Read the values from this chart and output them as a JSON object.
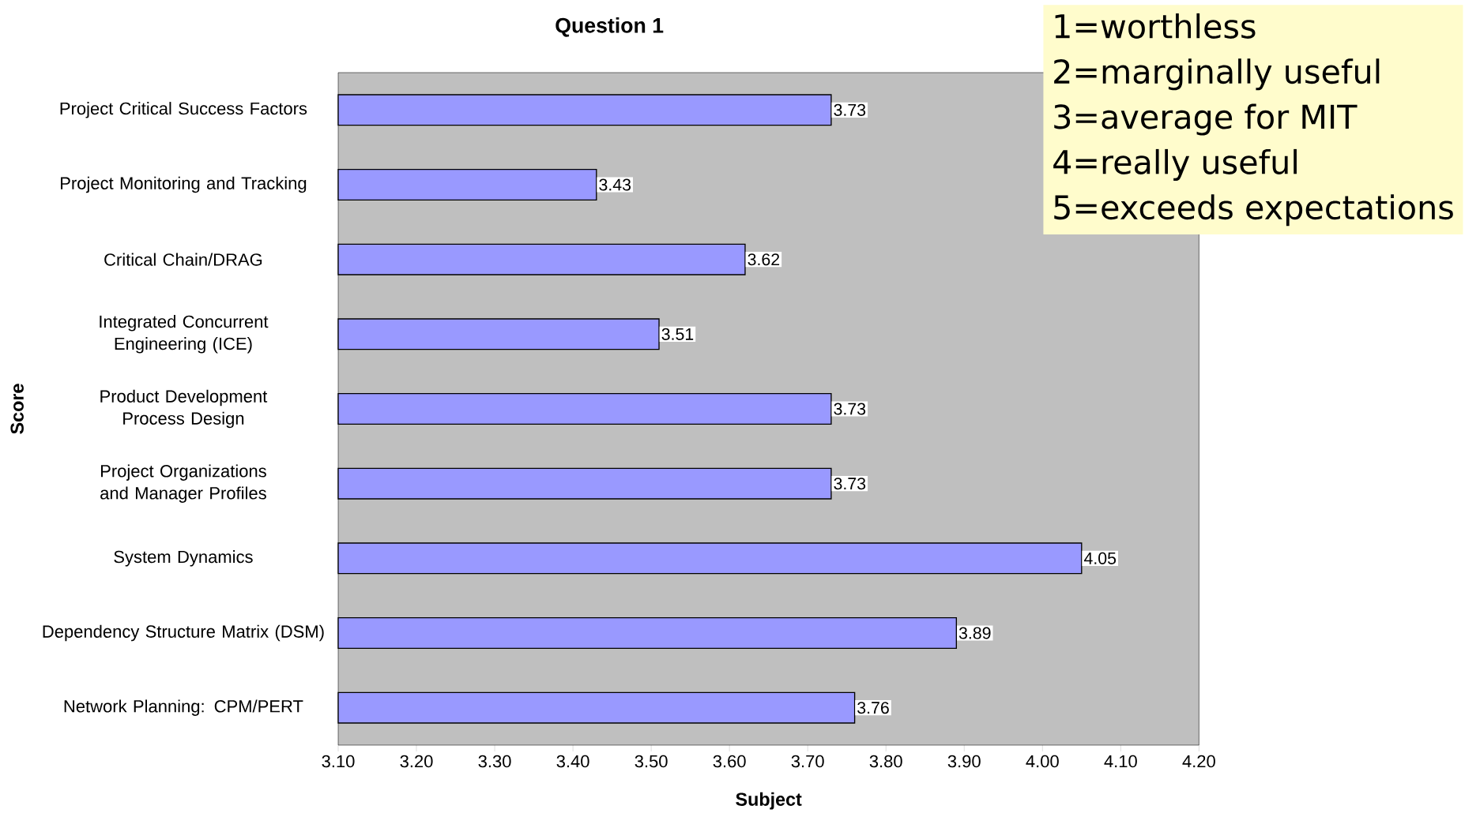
{
  "chart_data": {
    "type": "bar",
    "orientation": "horizontal",
    "title": "Question 1",
    "xlabel": "Subject",
    "ylabel": "Score",
    "categories": [
      "Project Critical Success Factors",
      "Project Monitoring and Tracking",
      "Critical Chain/DRAG",
      "Integrated Concurrent Engineering (ICE)",
      "Product Development Process Design",
      "Project Organizations and Manager Profiles",
      "System Dynamics",
      "Dependency Structure Matrix (DSM)",
      "Network Planning: CPM/PERT"
    ],
    "values": [
      3.73,
      3.43,
      3.62,
      3.51,
      3.73,
      3.73,
      4.05,
      3.89,
      3.76
    ],
    "color": "#9999ff",
    "data_labels": true,
    "xlim": [
      3.1,
      4.2
    ],
    "xticks": [
      {
        "value": 3.1,
        "label": "3.10"
      },
      {
        "value": 3.2,
        "label": "3.20"
      },
      {
        "value": 3.3,
        "label": "3.30"
      },
      {
        "value": 3.4,
        "label": "3.40"
      },
      {
        "value": 3.5,
        "label": "3.50"
      },
      {
        "value": 3.6,
        "label": "3.60"
      },
      {
        "value": 3.7,
        "label": "3.70"
      },
      {
        "value": 3.8,
        "label": "3.80"
      },
      {
        "value": 3.9,
        "label": "3.90"
      },
      {
        "value": 4.0,
        "label": "4.00"
      },
      {
        "value": 4.1,
        "label": "4.10"
      },
      {
        "value": 4.2,
        "label": "4.20"
      }
    ],
    "grid": false,
    "annotations": [
      "1=worthless",
      "2=marginally useful",
      "3=average for MIT",
      "4=really useful",
      "5=exceeds expectations"
    ]
  }
}
